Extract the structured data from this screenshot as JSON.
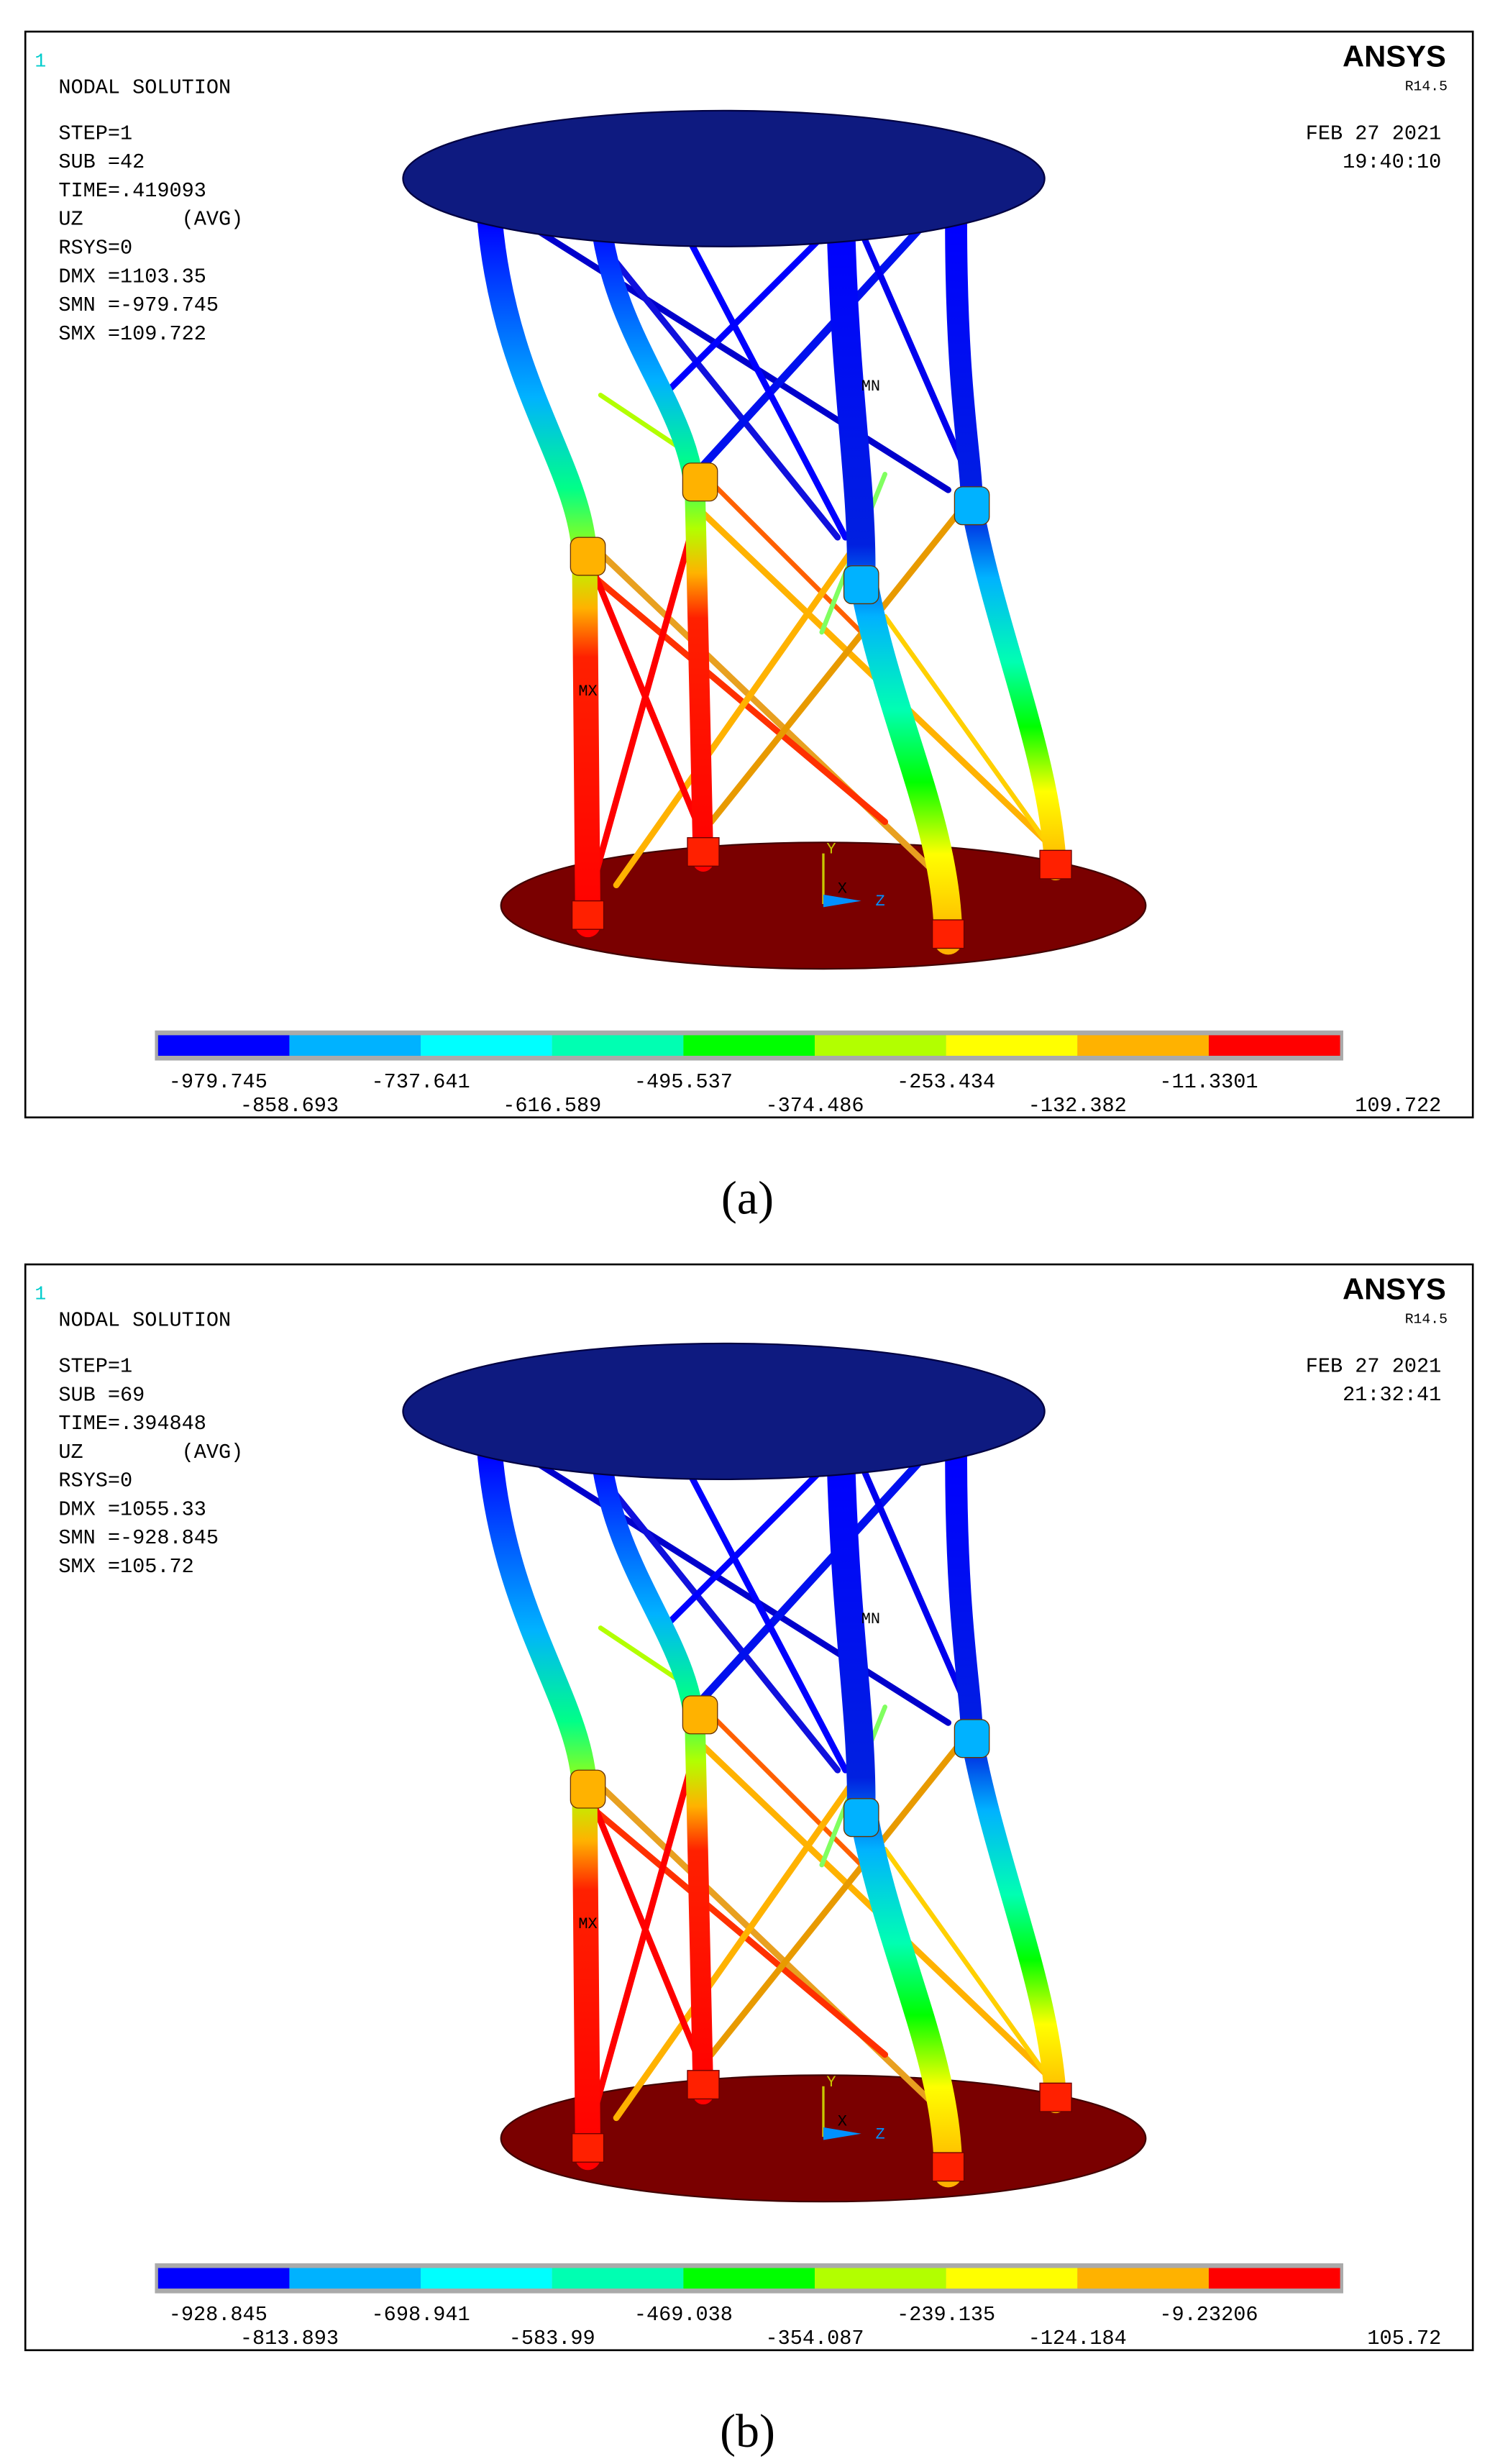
{
  "panels": [
    {
      "number": "1",
      "title": "NODAL SOLUTION",
      "info": [
        "STEP=1",
        "SUB =42",
        "TIME=.419093",
        "UZ        (AVG)",
        "RSYS=0",
        "DMX =1103.35",
        "SMN =-979.745",
        "SMX =109.722"
      ],
      "logo": "ANSYS",
      "version": "R14.5",
      "date": "FEB 27 2021",
      "time": "19:40:10",
      "min_marker": "MN",
      "max_marker": "MX",
      "axis_labels": [
        "Y",
        "X",
        "Z"
      ],
      "colorbar_labels": [
        "-979.745",
        "-858.693",
        "-737.641",
        "-616.589",
        "-495.537",
        "-374.486",
        "-253.434",
        "-132.382",
        "-11.3301",
        "109.722"
      ],
      "caption": "(a)"
    },
    {
      "number": "1",
      "title": "NODAL SOLUTION",
      "info": [
        "STEP=1",
        "SUB =69",
        "TIME=.394848",
        "UZ        (AVG)",
        "RSYS=0",
        "DMX =1055.33",
        "SMN =-928.845",
        "SMX =105.72"
      ],
      "logo": "ANSYS",
      "version": "R14.5",
      "date": "FEB 27 2021",
      "time": "21:32:41",
      "min_marker": "MN",
      "max_marker": "MX",
      "axis_labels": [
        "Y",
        "X",
        "Z"
      ],
      "colorbar_labels": [
        "-928.845",
        "-813.893",
        "-698.941",
        "-583.99",
        "-469.038",
        "-354.087",
        "-239.135",
        "-124.184",
        "-9.23206",
        "105.72"
      ],
      "caption": "(b)"
    }
  ]
}
